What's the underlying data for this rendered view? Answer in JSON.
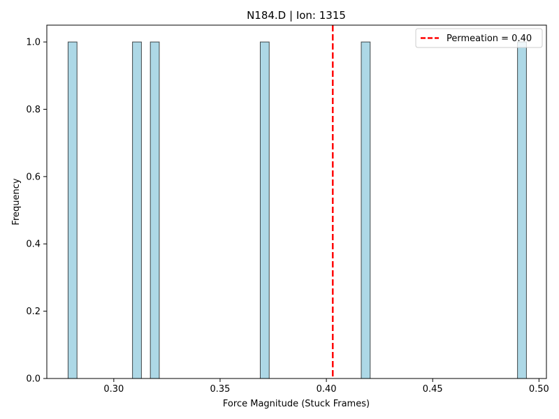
{
  "chart_data": {
    "type": "bar",
    "title": "N184.D | Ion: 1315",
    "xlabel": "Force Magnitude (Stuck Frames)",
    "ylabel": "Frequency",
    "xlim": [
      0.2685,
      0.5035
    ],
    "ylim": [
      0,
      1.05
    ],
    "x_ticks": [
      {
        "value": 0.3,
        "label": "0.30"
      },
      {
        "value": 0.35,
        "label": "0.35"
      },
      {
        "value": 0.4,
        "label": "0.40"
      },
      {
        "value": 0.45,
        "label": "0.45"
      },
      {
        "value": 0.5,
        "label": "0.50"
      }
    ],
    "y_ticks": [
      {
        "value": 0.0,
        "label": "0.0"
      },
      {
        "value": 0.2,
        "label": "0.2"
      },
      {
        "value": 0.4,
        "label": "0.4"
      },
      {
        "value": 0.6,
        "label": "0.6"
      },
      {
        "value": 0.8,
        "label": "0.8"
      },
      {
        "value": 1.0,
        "label": "1.0"
      }
    ],
    "bins": [
      {
        "start": 0.2785,
        "end": 0.2827,
        "count": 1
      },
      {
        "start": 0.3088,
        "end": 0.313,
        "count": 1
      },
      {
        "start": 0.3172,
        "end": 0.3214,
        "count": 1
      },
      {
        "start": 0.3689,
        "end": 0.3731,
        "count": 1
      },
      {
        "start": 0.4164,
        "end": 0.4206,
        "count": 1
      },
      {
        "start": 0.4899,
        "end": 0.4941,
        "count": 1
      }
    ],
    "bar_color": "#add8e6",
    "bar_edge_color": "#000000",
    "reference_line": {
      "value": 0.403,
      "color": "#ff0000",
      "style": "dashed"
    },
    "legend": {
      "position": "top-right",
      "label": "Permeation = 0.40"
    }
  }
}
